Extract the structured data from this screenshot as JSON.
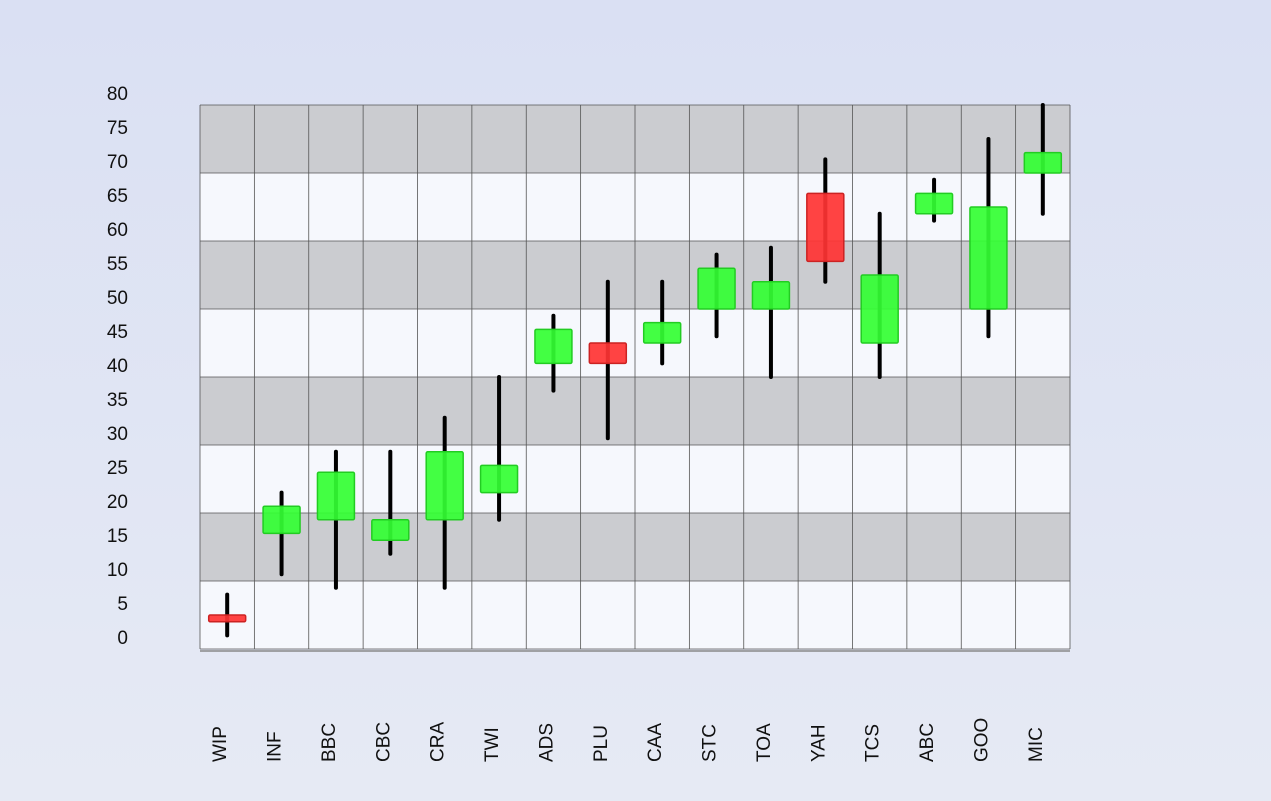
{
  "chart_data": {
    "type": "candlestick",
    "title": "",
    "xlabel": "",
    "ylabel": "",
    "ylim": [
      0,
      80
    ],
    "y_ticks": [
      0,
      5,
      10,
      15,
      20,
      25,
      30,
      35,
      40,
      45,
      50,
      55,
      60,
      65,
      70,
      75,
      80
    ],
    "grid": true,
    "legend": "none",
    "categories": [
      "WIP",
      "INF",
      "BBC",
      "CBC",
      "CRA",
      "TWI",
      "ADS",
      "PLU",
      "CAA",
      "STC",
      "TOA",
      "YAH",
      "TCS",
      "ABC",
      "GOO",
      "MIC"
    ],
    "candles": [
      {
        "label": "WIP",
        "open": 5,
        "close": 4,
        "high": 8,
        "low": 2
      },
      {
        "label": "INF",
        "open": 17,
        "close": 21,
        "high": 23,
        "low": 11
      },
      {
        "label": "BBC",
        "open": 19,
        "close": 26,
        "high": 29,
        "low": 9
      },
      {
        "label": "CBC",
        "open": 16,
        "close": 19,
        "high": 29,
        "low": 14
      },
      {
        "label": "CRA",
        "open": 19,
        "close": 29,
        "high": 34,
        "low": 9
      },
      {
        "label": "TWI",
        "open": 23,
        "close": 27,
        "high": 40,
        "low": 19
      },
      {
        "label": "ADS",
        "open": 42,
        "close": 47,
        "high": 49,
        "low": 38
      },
      {
        "label": "PLU",
        "open": 45,
        "close": 42,
        "high": 54,
        "low": 31
      },
      {
        "label": "CAA",
        "open": 45,
        "close": 48,
        "high": 54,
        "low": 42
      },
      {
        "label": "STC",
        "open": 50,
        "close": 56,
        "high": 58,
        "low": 46
      },
      {
        "label": "TOA",
        "open": 50,
        "close": 54,
        "high": 59,
        "low": 40
      },
      {
        "label": "YAH",
        "open": 67,
        "close": 57,
        "high": 72,
        "low": 54
      },
      {
        "label": "TCS",
        "open": 45,
        "close": 55,
        "high": 64,
        "low": 40
      },
      {
        "label": "ABC",
        "open": 64,
        "close": 67,
        "high": 69,
        "low": 63
      },
      {
        "label": "GOO",
        "open": 50,
        "close": 65,
        "high": 75,
        "low": 46
      },
      {
        "label": "MIC",
        "open": 70,
        "close": 73,
        "high": 80,
        "low": 64
      }
    ]
  },
  "colors": {
    "up": "#33ff33",
    "up_stroke": "#22cc22",
    "down": "#ff3333",
    "down_stroke": "#cc2222",
    "band_dark": "#cbccd0",
    "band_light": "#f6f8fd",
    "grid_line": "#555555",
    "wick": "#000000"
  }
}
